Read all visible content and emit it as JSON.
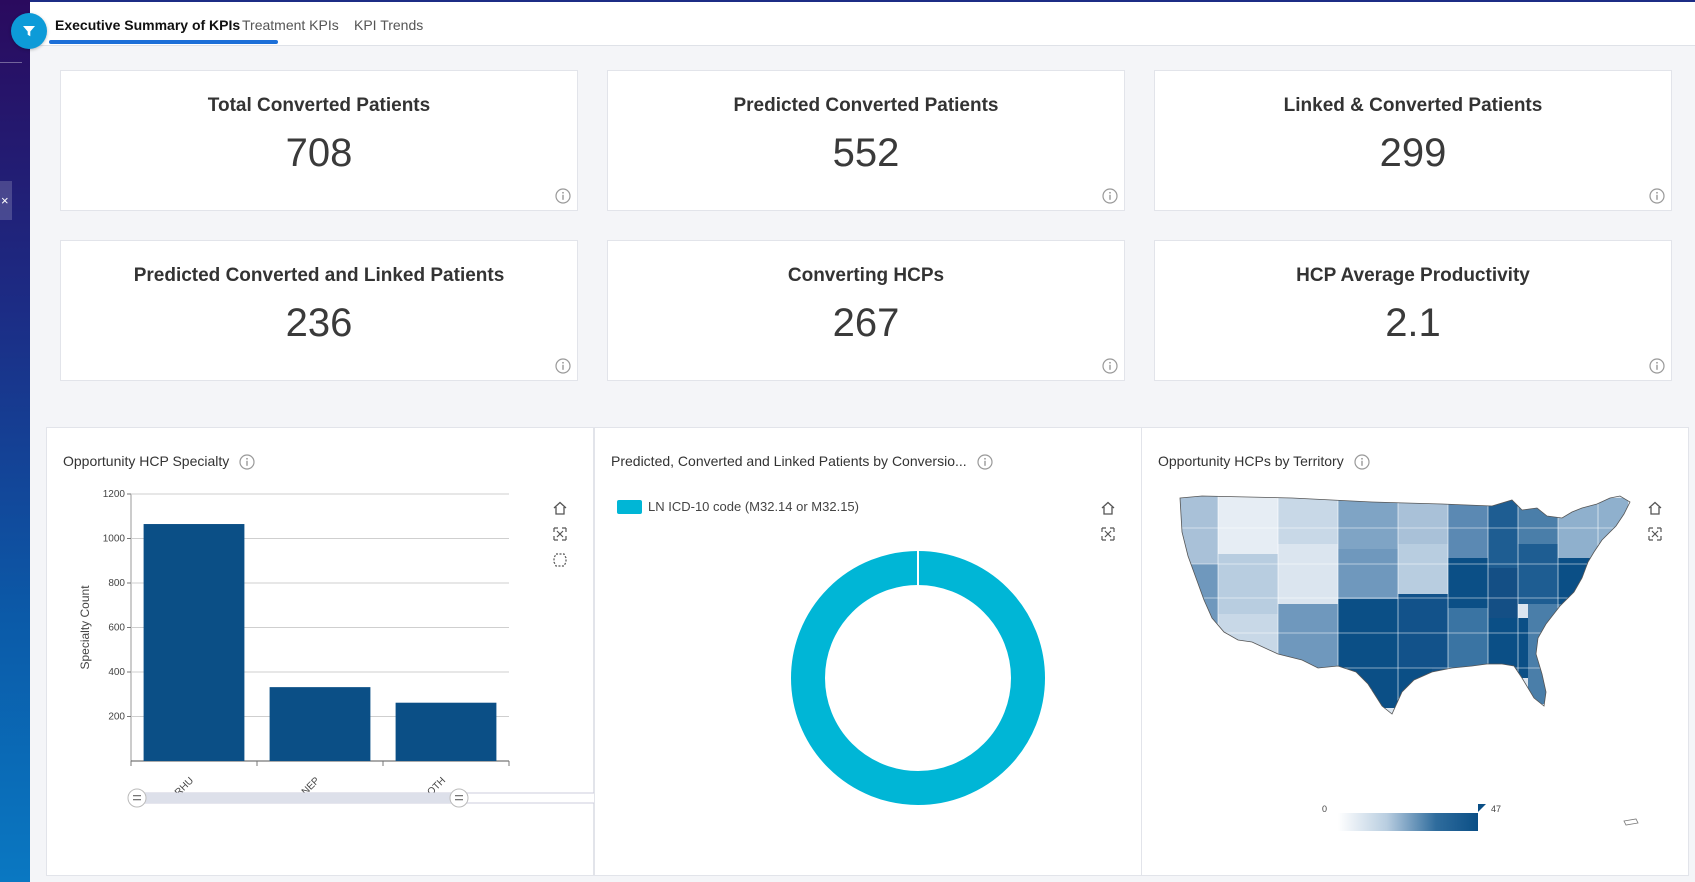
{
  "tabs": [
    {
      "label": "Executive Summary of KPIs",
      "active": true
    },
    {
      "label": "Treatment KPIs",
      "active": false
    },
    {
      "label": "KPI Trends",
      "active": false
    }
  ],
  "rail": {
    "close_glyph": "×",
    "filter_icon": "filter-icon"
  },
  "kpis": [
    {
      "title": "Total Converted Patients",
      "value": "708"
    },
    {
      "title": "Predicted Converted Patients",
      "value": "552"
    },
    {
      "title": "Linked & Converted Patients",
      "value": "299"
    },
    {
      "title": "Predicted Converted and Linked Patients",
      "value": "236"
    },
    {
      "title": "Converting HCPs",
      "value": "267"
    },
    {
      "title": "HCP Average Productivity",
      "value": "2.1"
    }
  ],
  "panels": {
    "specialty": {
      "title": "Opportunity HCP Specialty"
    },
    "donut": {
      "title": "Predicted, Converted and Linked Patients by Conversio...",
      "legend": "LN ICD-10 code (M32.14 or M32.15)"
    },
    "territory": {
      "title": "Opportunity HCPs by Territory",
      "scale_min": "0",
      "scale_max": "47"
    }
  },
  "colors": {
    "bar": "#0b4f86",
    "donut": "#00b6d6",
    "accent": "#1c6fd8",
    "filter": "#0d9bd8"
  },
  "chart_data": [
    {
      "type": "bar",
      "title": "Opportunity HCP Specialty",
      "categories": [
        "RHU",
        "NEP",
        "OTH"
      ],
      "values": [
        1065,
        332,
        262
      ],
      "ylabel": "Specialty Count",
      "xlabel": "",
      "ylim": [
        0,
        1200
      ],
      "yticks": [
        200,
        400,
        600,
        800,
        1000,
        1200
      ],
      "ytick_labels": [
        "200",
        "400",
        "600",
        "800",
        "1000",
        "1200"
      ],
      "grid": true
    },
    {
      "type": "pie",
      "title": "Predicted, Converted and Linked Patients by Conversio...",
      "categories": [
        "LN ICD-10 code (M32.14 or M32.15)"
      ],
      "values": [
        100
      ],
      "legend": "top-left"
    }
  ]
}
